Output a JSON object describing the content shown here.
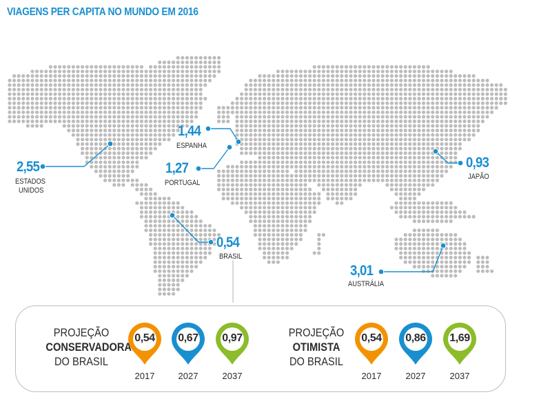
{
  "title": "VIAGENS PER CAPITA NO MUNDO EM 2016",
  "colors": {
    "accent": "#1a8fd0",
    "dots": "#bcbcbc",
    "orange": "#f39200",
    "blue": "#1a8fd0",
    "green": "#8cbc2a"
  },
  "callouts": [
    {
      "id": "usa",
      "value": "2,55",
      "label_lines": [
        "ESTADOS",
        "UNIDOS"
      ]
    },
    {
      "id": "spain",
      "value": "1,44",
      "label_lines": [
        "ESPANHA"
      ]
    },
    {
      "id": "portugal",
      "value": "1,27",
      "label_lines": [
        "PORTUGAL"
      ]
    },
    {
      "id": "japan",
      "value": "0,93",
      "label_lines": [
        "JAPÃO"
      ]
    },
    {
      "id": "brazil",
      "value": "0,54",
      "label_lines": [
        "BRASIL"
      ]
    },
    {
      "id": "australia",
      "value": "3,01",
      "label_lines": [
        "AUSTRÁLIA"
      ]
    }
  ],
  "projections": {
    "conservative": {
      "label_top": "PROJEÇÃO",
      "label_bold": "CONSERVADORA",
      "label_bottom": "DO BRASIL",
      "items": [
        {
          "value": "0,54",
          "year": "2017",
          "color": "orange"
        },
        {
          "value": "0,67",
          "year": "2027",
          "color": "blue"
        },
        {
          "value": "0,97",
          "year": "2037",
          "color": "green"
        }
      ]
    },
    "optimistic": {
      "label_top": "PROJEÇÃO",
      "label_bold": "OTIMISTA",
      "label_bottom": "DO BRASIL",
      "items": [
        {
          "value": "0,54",
          "year": "2017",
          "color": "orange"
        },
        {
          "value": "0,86",
          "year": "2027",
          "color": "blue"
        },
        {
          "value": "1,69",
          "year": "2037",
          "color": "green"
        }
      ]
    }
  }
}
